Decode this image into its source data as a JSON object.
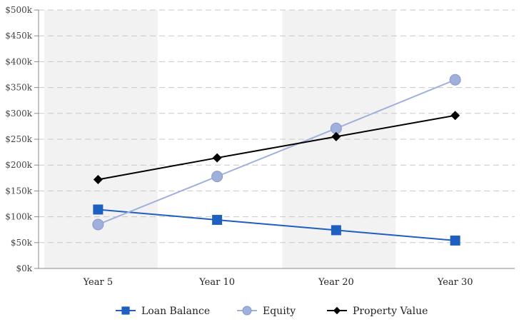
{
  "chart_data": {
    "type": "line",
    "categories": [
      "Year 5",
      "Year 10",
      "Year 20",
      "Year 30"
    ],
    "y_ticks": [
      "$0k",
      "$50k",
      "$100k",
      "$150k",
      "$200k",
      "$250k",
      "$300k",
      "$350k",
      "$400k",
      "$450k",
      "$500k"
    ],
    "ylim": [
      0,
      500000
    ],
    "grid": true,
    "legend_position": "bottom",
    "series": [
      {
        "name": "Loan Balance",
        "color": "#1f5fbf",
        "marker": "square",
        "values": [
          114000,
          94000,
          74000,
          54000
        ]
      },
      {
        "name": "Equity",
        "color": "#9fb0dc",
        "marker": "circle",
        "values": [
          85000,
          178000,
          271000,
          365000
        ]
      },
      {
        "name": "Property Value",
        "color": "#000000",
        "marker": "diamond",
        "values": [
          172000,
          214000,
          255000,
          296000
        ]
      }
    ]
  }
}
